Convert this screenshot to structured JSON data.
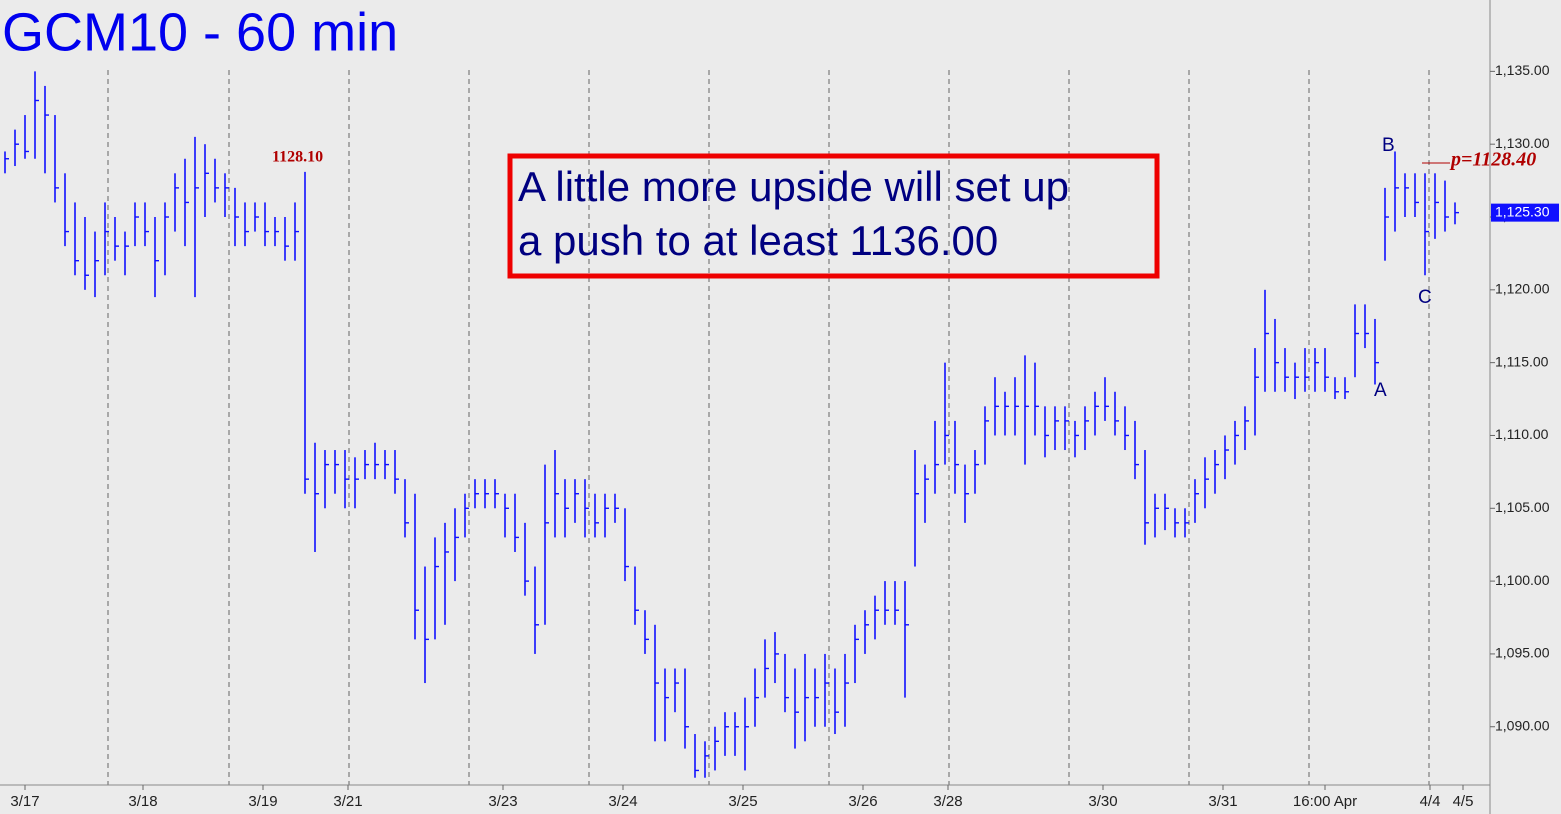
{
  "chart_data": {
    "type": "ohlc",
    "title": "GCM10 - 60 min",
    "color": "#1010ff",
    "ylim": [
      1086.0,
      1139.9
    ],
    "yticks": [
      {
        "value": 1090,
        "label": "1,090.00"
      },
      {
        "value": 1095,
        "label": "1,095.00"
      },
      {
        "value": 1100,
        "label": "1,100.00"
      },
      {
        "value": 1105,
        "label": "1,105.00"
      },
      {
        "value": 1110,
        "label": "1,110.00"
      },
      {
        "value": 1115,
        "label": "1,115.00"
      },
      {
        "value": 1120,
        "label": "1,120.00"
      },
      {
        "value": 1125,
        "label": "1,125.00"
      },
      {
        "value": 1130,
        "label": "1,130.00"
      },
      {
        "value": 1135,
        "label": "1,135.00"
      }
    ],
    "xlim": [
      -0.5,
      148.5
    ],
    "xticks": [
      {
        "value": 2,
        "label": "3/17"
      },
      {
        "value": 13.8,
        "label": "3/18"
      },
      {
        "value": 25.8,
        "label": "3/19"
      },
      {
        "value": 34.3,
        "label": "3/21"
      },
      {
        "value": 49.8,
        "label": "3/23"
      },
      {
        "value": 61.8,
        "label": "3/24"
      },
      {
        "value": 73.8,
        "label": "3/25"
      },
      {
        "value": 85.8,
        "label": "3/26"
      },
      {
        "value": 94.3,
        "label": "3/28"
      },
      {
        "value": 109.8,
        "label": "3/30"
      },
      {
        "value": 121.8,
        "label": "3/31"
      },
      {
        "value": 132,
        "label": "16:00 Apr"
      },
      {
        "value": 142.5,
        "label": "4/4"
      },
      {
        "value": 145.8,
        "label": "4/5"
      }
    ],
    "session_breaks": [
      10.3,
      22.4,
      34.4,
      46.4,
      58.4,
      70.4,
      82.4,
      94.4,
      106.4,
      118.4,
      130.4,
      142.4
    ],
    "high": [
      1129.5,
      1131,
      1132,
      1135,
      1134,
      1132,
      1128,
      1126,
      1125,
      1124,
      1126,
      1125,
      1124,
      1126,
      1126,
      1125,
      1126,
      1128,
      1129,
      1130.5,
      1130,
      1129,
      1128,
      1127,
      1126,
      1126,
      1126,
      1125,
      1125,
      1126,
      1128.1,
      1109.5,
      1109,
      1109,
      1109,
      1108.5,
      1109,
      1109.5,
      1109,
      1109,
      1107,
      1106,
      1101,
      1103,
      1104,
      1105,
      1106,
      1107,
      1107,
      1107,
      1106,
      1106,
      1104,
      1101,
      1108,
      1109,
      1107,
      1107,
      1107,
      1106,
      1106,
      1106,
      1105,
      1101,
      1098,
      1097,
      1094,
      1094,
      1094,
      1089.5,
      1089,
      1090,
      1091,
      1091,
      1092,
      1094,
      1096,
      1096.5,
      1095,
      1094,
      1095,
      1094,
      1095,
      1094,
      1095,
      1097,
      1098,
      1099,
      1100,
      1100,
      1100,
      1109,
      1108,
      1111,
      1115,
      1111,
      1108,
      1109,
      1112,
      1114,
      1113,
      1114,
      1115.5,
      1115,
      1112,
      1112,
      1112,
      1111,
      1112,
      1113,
      1114,
      1113,
      1112,
      1111,
      1109,
      1106,
      1106,
      1105,
      1105,
      1107,
      1108.5,
      1109,
      1110,
      1111,
      1112,
      1116,
      1120,
      1118,
      1116,
      1115,
      1116,
      1116,
      1116,
      1114,
      1114,
      1119,
      1119,
      1118,
      1127,
      1129.5,
      1128,
      1128,
      1128,
      1128,
      1127.5,
      1126
    ],
    "low": [
      1128,
      1128.5,
      1129,
      1129,
      1128,
      1126,
      1123,
      1121,
      1120,
      1119.5,
      1121,
      1122,
      1121,
      1123,
      1123,
      1119.5,
      1121,
      1124,
      1123,
      1119.5,
      1125,
      1126,
      1125,
      1123,
      1123,
      1124,
      1123,
      1123,
      1122,
      1122,
      1106,
      1102,
      1105,
      1106,
      1105,
      1105,
      1107,
      1107,
      1107,
      1106,
      1103,
      1096,
      1093,
      1096,
      1097,
      1100,
      1103,
      1105,
      1105,
      1105,
      1103,
      1102,
      1099,
      1095,
      1097,
      1103,
      1103,
      1104,
      1103,
      1103,
      1103,
      1104,
      1100,
      1097,
      1095,
      1089,
      1089,
      1091,
      1088.5,
      1086.5,
      1086.5,
      1087,
      1088,
      1088,
      1087,
      1090,
      1092,
      1093,
      1091,
      1088.5,
      1089,
      1090,
      1090,
      1089.5,
      1090,
      1093,
      1095,
      1096,
      1097,
      1097,
      1092,
      1101,
      1104,
      1106,
      1108,
      1106,
      1104,
      1106,
      1108,
      1110,
      1110,
      1110,
      1108,
      1110,
      1108.5,
      1109,
      1109,
      1108.5,
      1109,
      1110,
      1111,
      1110,
      1109,
      1107,
      1102.5,
      1103,
      1103.5,
      1103,
      1103,
      1104,
      1105,
      1106,
      1107,
      1108,
      1109,
      1110,
      1113,
      1113,
      1113,
      1112.5,
      1113,
      1113,
      1113,
      1112.5,
      1112.5,
      1114,
      1116,
      1113.5,
      1122,
      1124,
      1125,
      1125,
      1121,
      1123.5,
      1124,
      1124.5
    ],
    "close": [
      1129,
      1130,
      1129.5,
      1133,
      1132,
      1127,
      1124,
      1122,
      1121,
      1122,
      1124,
      1123,
      1123,
      1125,
      1124,
      1122,
      1125,
      1127,
      1126,
      1127,
      1128,
      1127,
      1127,
      1125,
      1124,
      1125,
      1124,
      1124,
      1123,
      1124,
      1107,
      1106,
      1108,
      1108,
      1107,
      1107,
      1108,
      1108,
      1108,
      1107,
      1104,
      1098,
      1096,
      1101,
      1102,
      1103,
      1105,
      1106,
      1106,
      1106,
      1105,
      1103,
      1100,
      1097,
      1104,
      1106,
      1105,
      1106,
      1105,
      1104,
      1105,
      1105,
      1101,
      1098,
      1096,
      1093,
      1092,
      1093,
      1090,
      1087,
      1088,
      1089,
      1090,
      1090,
      1090,
      1092,
      1094,
      1095,
      1092,
      1091,
      1092,
      1092,
      1093,
      1091,
      1093,
      1096,
      1097,
      1098,
      1098,
      1098,
      1097,
      1106,
      1107,
      1108,
      1110,
      1108,
      1106,
      1108,
      1111,
      1112,
      1112,
      1112,
      1112,
      1112,
      1110,
      1111,
      1111,
      1110,
      1111,
      1112,
      1112,
      1111,
      1110,
      1108,
      1104,
      1105,
      1105,
      1104,
      1104,
      1106,
      1107,
      1108,
      1109,
      1110,
      1111,
      1114,
      1117,
      1115,
      1114,
      1114,
      1114,
      1115,
      1114,
      1113,
      1113,
      1117,
      1117,
      1115,
      1125,
      1127,
      1127,
      1126,
      1124,
      1126,
      1125,
      1125.3
    ],
    "last_price": {
      "value": 1125.3,
      "label": "1,125.30"
    },
    "annotation_high": "1128.10",
    "annotation_target": "p=1128.40",
    "wave_labels": [
      "A",
      "B",
      "C"
    ],
    "callout": [
      "A little more upside will set up",
      "a push to at least 1136.00"
    ]
  }
}
